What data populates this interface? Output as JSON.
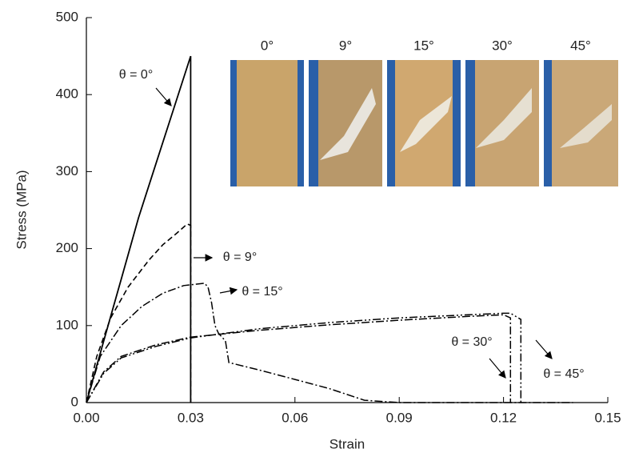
{
  "chart_data": {
    "type": "line",
    "x_label": "Strain",
    "y_label": "Stress (MPa)",
    "xlim": [
      0,
      0.15
    ],
    "ylim": [
      0,
      500
    ],
    "xticks": [
      {
        "value": 0,
        "label": "0.00"
      },
      0.03,
      0.06,
      0.09,
      0.12,
      0.15
    ],
    "yticks": [
      0,
      100,
      200,
      300,
      400,
      500
    ],
    "inset_labels": [
      "0°",
      "9°",
      "15°",
      "30°",
      "45°"
    ],
    "series": [
      {
        "name": "θ = 0°",
        "color": "#000000",
        "style": "solid",
        "x": [
          0,
          0.005,
          0.01,
          0.015,
          0.02,
          0.025,
          0.03,
          0.03
        ],
        "values": [
          0,
          80,
          160,
          240,
          310,
          380,
          450,
          0
        ]
      },
      {
        "name": "θ = 9°",
        "color": "#000000",
        "style": "dashed",
        "x": [
          0,
          0.003,
          0.007,
          0.012,
          0.018,
          0.022,
          0.026,
          0.029,
          0.03,
          0.03
        ],
        "values": [
          0,
          60,
          110,
          150,
          185,
          205,
          220,
          232,
          230,
          0
        ]
      },
      {
        "name": "θ = 15°",
        "color": "#000000",
        "style": "dashdot",
        "x": [
          0,
          0.004,
          0.01,
          0.016,
          0.022,
          0.028,
          0.034,
          0.035,
          0.036,
          0.037,
          0.038,
          0.04,
          0.041,
          0.05,
          0.06,
          0.07,
          0.08,
          0.09,
          0.14
        ],
        "values": [
          0,
          60,
          100,
          125,
          142,
          152,
          155,
          150,
          130,
          100,
          90,
          80,
          52,
          42,
          30,
          18,
          3,
          0,
          0
        ]
      },
      {
        "name": "θ = 30°",
        "color": "#000000",
        "style": "dashdot",
        "x": [
          0,
          0.005,
          0.01,
          0.02,
          0.03,
          0.05,
          0.07,
          0.09,
          0.11,
          0.12,
          0.122,
          0.122
        ],
        "values": [
          0,
          40,
          60,
          75,
          85,
          94,
          101,
          107,
          112,
          114,
          110,
          0
        ]
      },
      {
        "name": "θ = 45°",
        "color": "#000000",
        "style": "dashdotdot",
        "x": [
          0,
          0.005,
          0.01,
          0.02,
          0.03,
          0.05,
          0.07,
          0.09,
          0.11,
          0.12,
          0.122,
          0.125,
          0.125
        ],
        "values": [
          0,
          38,
          58,
          73,
          84,
          96,
          104,
          110,
          114,
          116,
          116,
          108,
          0
        ]
      }
    ]
  }
}
